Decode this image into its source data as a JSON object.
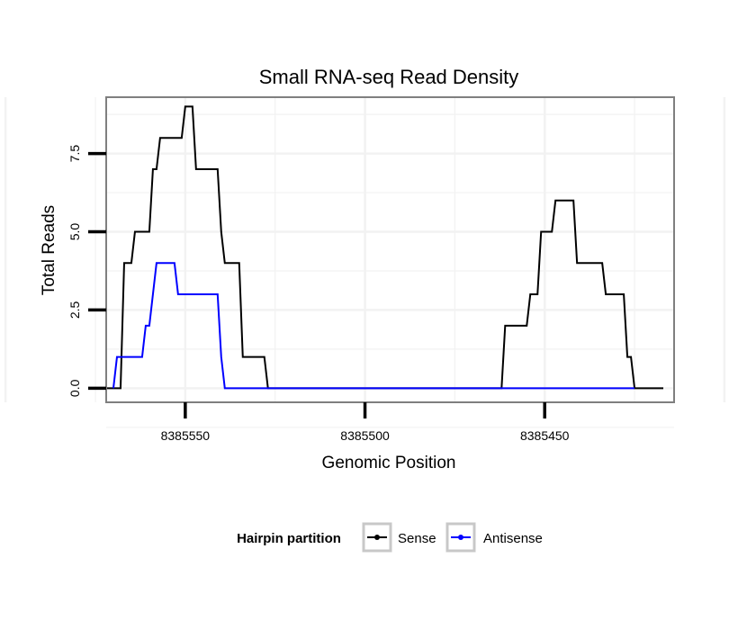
{
  "chart_data": {
    "type": "line",
    "title": "Small RNA-seq Read Density",
    "xlabel": "Genomic Position",
    "ylabel": "Total Reads",
    "xlim": [
      8385572,
      8385414
    ],
    "x_reversed": true,
    "ylim": [
      -0.45,
      9.3
    ],
    "xticks": [
      8385550,
      8385500,
      8385450
    ],
    "xtick_labels": [
      "8385550",
      "8385500",
      "8385450"
    ],
    "yticks": [
      0,
      2.5,
      5,
      7.5
    ],
    "ytick_labels": [
      "0.0",
      "2.5",
      "5.0",
      "7.5"
    ],
    "grid": true,
    "legend": {
      "title": "Hairpin partition",
      "position": "bottom",
      "entries": [
        "Sense",
        "Antisense"
      ]
    },
    "series": [
      {
        "name": "Sense",
        "color": "#000000",
        "points": [
          [
            8385574,
            0
          ],
          [
            8385568,
            0
          ],
          [
            8385567,
            4
          ],
          [
            8385565,
            4
          ],
          [
            8385564,
            5
          ],
          [
            8385560,
            5
          ],
          [
            8385559,
            7
          ],
          [
            8385558,
            7
          ],
          [
            8385557,
            8
          ],
          [
            8385551,
            8
          ],
          [
            8385550,
            9
          ],
          [
            8385548,
            9
          ],
          [
            8385547,
            7
          ],
          [
            8385541,
            7
          ],
          [
            8385540,
            5
          ],
          [
            8385539,
            4
          ],
          [
            8385535,
            4
          ],
          [
            8385534,
            1
          ],
          [
            8385528,
            1
          ],
          [
            8385527,
            0
          ],
          [
            8385462,
            0
          ],
          [
            8385461,
            2
          ],
          [
            8385455,
            2
          ],
          [
            8385454,
            3
          ],
          [
            8385452,
            3
          ],
          [
            8385451,
            5
          ],
          [
            8385448,
            5
          ],
          [
            8385447,
            6
          ],
          [
            8385442,
            6
          ],
          [
            8385441,
            4
          ],
          [
            8385434,
            4
          ],
          [
            8385433,
            3
          ],
          [
            8385428,
            3
          ],
          [
            8385427,
            1
          ],
          [
            8385426,
            1
          ],
          [
            8385425,
            0
          ],
          [
            8385417,
            0
          ]
        ]
      },
      {
        "name": "Antisense",
        "color": "#0000ff",
        "points": [
          [
            8385570,
            0
          ],
          [
            8385569,
            1
          ],
          [
            8385562,
            1
          ],
          [
            8385561,
            2
          ],
          [
            8385560,
            2
          ],
          [
            8385559,
            3
          ],
          [
            8385558,
            4
          ],
          [
            8385553,
            4
          ],
          [
            8385552,
            3
          ],
          [
            8385541,
            3
          ],
          [
            8385540,
            1
          ],
          [
            8385539,
            0
          ],
          [
            8385525,
            0
          ],
          [
            8385425,
            0
          ]
        ]
      }
    ]
  }
}
